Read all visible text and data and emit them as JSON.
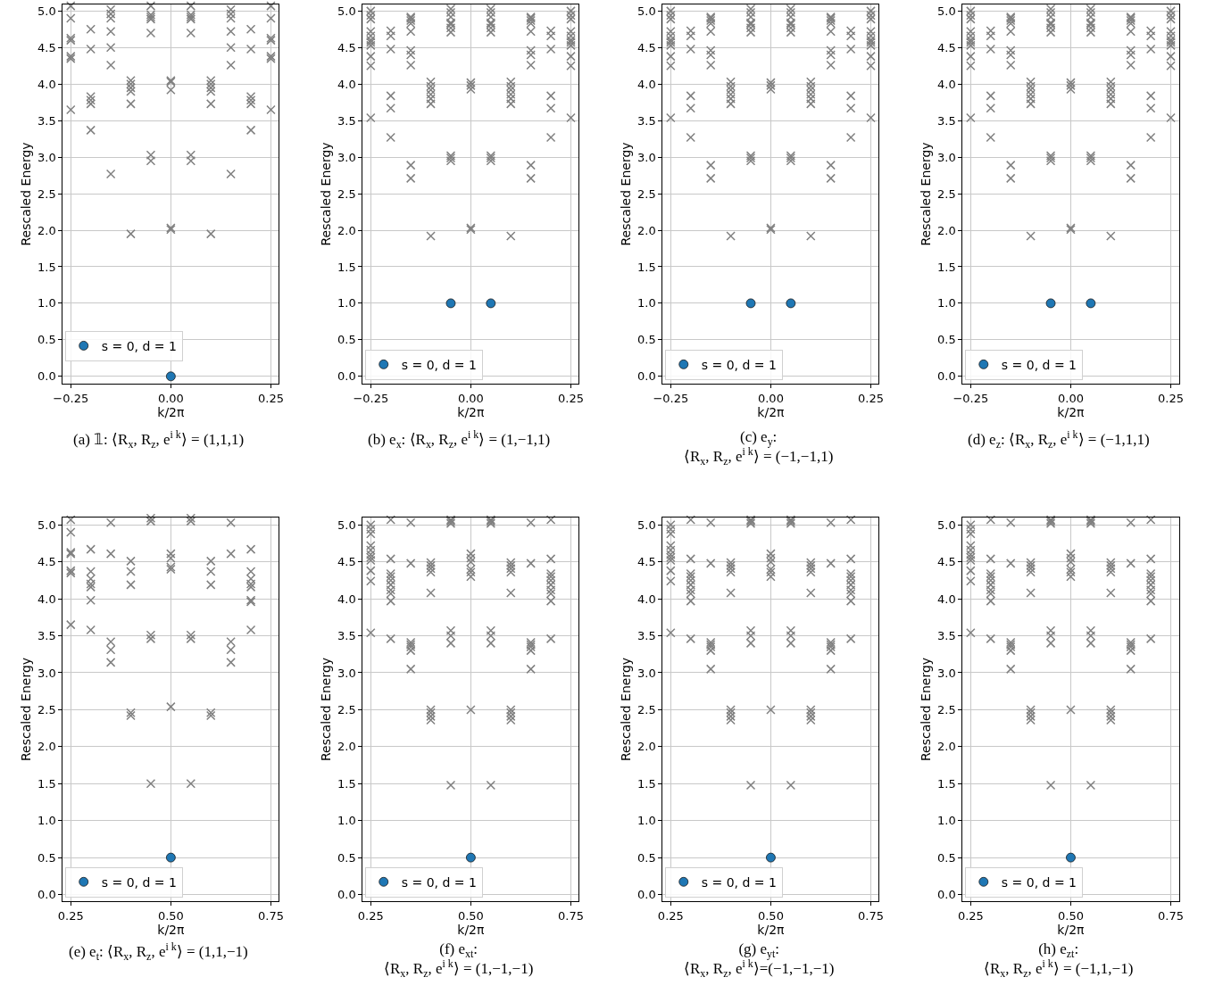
{
  "chart_data": [
    {
      "type": "scatter",
      "xlabel": "k/2π",
      "ylabel": "Rescaled Energy",
      "grid": true,
      "legend": "bottom left",
      "xlim": [
        -0.27,
        0.27
      ],
      "ylim": [
        -0.1,
        5.09
      ],
      "xticks": [
        {
          "value": -0.25,
          "label": "−0.25"
        },
        {
          "value": 0,
          "label": "0.00"
        },
        {
          "value": 0.25,
          "label": "0.25"
        }
      ],
      "yticks": [
        {
          "value": 0,
          "label": "0.0"
        },
        {
          "value": 0.5,
          "label": "0.5"
        },
        {
          "value": 1,
          "label": "1.0"
        },
        {
          "value": 1.5,
          "label": "1.5"
        },
        {
          "value": 2,
          "label": "2.0"
        },
        {
          "value": 2.5,
          "label": "2.5"
        },
        {
          "value": 3,
          "label": "3.0"
        },
        {
          "value": 3.5,
          "label": "3.5"
        },
        {
          "value": 4,
          "label": "4.0"
        },
        {
          "value": 4.5,
          "label": "4.5"
        },
        {
          "value": 5,
          "label": "5.0"
        }
      ],
      "annotations": [
        "(a) 𝟙: ⟨R$_{x}$, R$_{z}$, e$^{i k}$⟩ = (1,1,1)"
      ],
      "series": [
        {
          "color": "#808080",
          "marker": "cross",
          "x": [
            -0.25,
            -0.25,
            -0.25,
            -0.25,
            -0.25,
            -0.25,
            -0.25,
            -0.2,
            -0.2,
            -0.2,
            -0.2,
            -0.2,
            -0.2,
            -0.15,
            -0.15,
            -0.15,
            -0.15,
            -0.15,
            -0.15,
            -0.15,
            -0.1,
            -0.1,
            -0.1,
            -0.1,
            -0.1,
            -0.1,
            -0.05,
            -0.05,
            -0.05,
            -0.05,
            -0.05,
            -0.05,
            -0.05,
            0,
            0,
            0,
            0,
            0,
            0.05,
            0.05,
            0.05,
            0.05,
            0.05,
            0.05,
            0.05,
            0.1,
            0.1,
            0.1,
            0.1,
            0.1,
            0.1,
            0.15,
            0.15,
            0.15,
            0.15,
            0.15,
            0.15,
            0.15,
            0.2,
            0.2,
            0.2,
            0.2,
            0.2,
            0.2,
            0.25,
            0.25,
            0.25,
            0.25,
            0.25,
            0.25,
            0.25
          ],
          "values": [
            5.07,
            4.9,
            4.63,
            4.6,
            4.38,
            4.35,
            3.65,
            4.75,
            4.48,
            3.83,
            3.78,
            3.73,
            3.37,
            5.02,
            4.96,
            4.9,
            4.72,
            4.5,
            4.26,
            2.77,
            4.05,
            4.0,
            3.95,
            3.9,
            3.73,
            1.95,
            5.07,
            4.95,
            4.92,
            4.89,
            4.7,
            3.03,
            2.95,
            4.05,
            4.03,
            3.92,
            2.03,
            2.01,
            5.07,
            4.95,
            4.92,
            4.89,
            4.7,
            3.03,
            2.95,
            4.05,
            4.0,
            3.95,
            3.9,
            3.73,
            1.95,
            5.02,
            4.96,
            4.9,
            4.72,
            4.5,
            4.26,
            2.77,
            4.75,
            4.48,
            3.83,
            3.78,
            3.73,
            3.37,
            5.07,
            4.9,
            4.63,
            4.6,
            4.38,
            4.35,
            3.65
          ]
        },
        {
          "name": "s = 0, d = 1",
          "color": "#1f77b4",
          "marker": "circle",
          "x": [
            0
          ],
          "values": [
            0
          ]
        }
      ]
    },
    {
      "type": "scatter",
      "xlabel": "k/2π",
      "ylabel": "Rescaled Energy",
      "grid": true,
      "legend": "bottom left",
      "xlim": [
        -0.27,
        0.27
      ],
      "ylim": [
        -0.1,
        5.09
      ],
      "xticks": [
        {
          "value": -0.25,
          "label": "−0.25"
        },
        {
          "value": 0,
          "label": "0.00"
        },
        {
          "value": 0.25,
          "label": "0.25"
        }
      ],
      "yticks": [
        {
          "value": 0,
          "label": "0.0"
        },
        {
          "value": 0.5,
          "label": "0.5"
        },
        {
          "value": 1,
          "label": "1.0"
        },
        {
          "value": 1.5,
          "label": "1.5"
        },
        {
          "value": 2,
          "label": "2.0"
        },
        {
          "value": 2.5,
          "label": "2.5"
        },
        {
          "value": 3,
          "label": "3.0"
        },
        {
          "value": 3.5,
          "label": "3.5"
        },
        {
          "value": 4,
          "label": "4.0"
        },
        {
          "value": 4.5,
          "label": "4.5"
        },
        {
          "value": 5,
          "label": "5.0"
        }
      ],
      "annotations": [
        "(b) e$_{x}$: ⟨R$_{x}$, R$_{z}$, e$^{i k}$⟩ = (1,−1,1)"
      ],
      "series": [
        {
          "color": "#808080",
          "marker": "cross",
          "x": [
            -0.25,
            -0.25,
            -0.25,
            -0.25,
            -0.25,
            -0.25,
            -0.25,
            -0.25,
            -0.25,
            -0.25,
            -0.25,
            -0.2,
            -0.2,
            -0.2,
            -0.2,
            -0.2,
            -0.2,
            -0.15,
            -0.15,
            -0.15,
            -0.15,
            -0.15,
            -0.15,
            -0.15,
            -0.15,
            -0.15,
            -0.15,
            -0.1,
            -0.1,
            -0.1,
            -0.1,
            -0.1,
            -0.1,
            -0.1,
            -0.05,
            -0.05,
            -0.05,
            -0.05,
            -0.05,
            -0.05,
            -0.05,
            -0.05,
            -0.05,
            -0.05,
            0,
            0,
            0,
            0,
            0,
            0.05,
            0.05,
            0.05,
            0.05,
            0.05,
            0.05,
            0.05,
            0.05,
            0.05,
            0.05,
            0.1,
            0.1,
            0.1,
            0.1,
            0.1,
            0.1,
            0.1,
            0.15,
            0.15,
            0.15,
            0.15,
            0.15,
            0.15,
            0.15,
            0.15,
            0.15,
            0.15,
            0.2,
            0.2,
            0.2,
            0.2,
            0.2,
            0.2,
            0.25,
            0.25,
            0.25,
            0.25,
            0.25,
            0.25,
            0.25,
            0.25,
            0.25,
            0.25,
            0.25
          ],
          "values": [
            5.0,
            4.94,
            4.89,
            4.72,
            4.66,
            4.6,
            4.57,
            4.53,
            4.38,
            4.25,
            3.54,
            4.73,
            4.66,
            4.48,
            3.84,
            3.67,
            3.27,
            4.92,
            4.9,
            4.87,
            4.83,
            4.72,
            4.46,
            4.4,
            4.26,
            2.89,
            2.71,
            4.03,
            3.97,
            3.92,
            3.86,
            3.8,
            3.73,
            1.92,
            5.03,
            4.98,
            4.92,
            4.84,
            4.82,
            4.77,
            4.71,
            3.02,
            2.99,
            2.95,
            4.02,
            3.98,
            3.93,
            2.03,
            2.01,
            5.03,
            4.98,
            4.92,
            4.84,
            4.82,
            4.77,
            4.71,
            3.02,
            2.99,
            2.95,
            4.03,
            3.97,
            3.92,
            3.86,
            3.8,
            3.73,
            1.92,
            4.92,
            4.9,
            4.87,
            4.83,
            4.72,
            4.46,
            4.4,
            4.26,
            2.89,
            2.71,
            4.73,
            4.66,
            4.48,
            3.84,
            3.67,
            3.27,
            5.0,
            4.94,
            4.89,
            4.72,
            4.66,
            4.6,
            4.57,
            4.53,
            4.38,
            4.25,
            3.54
          ]
        },
        {
          "name": "s = 0, d = 1",
          "color": "#1f77b4",
          "marker": "circle",
          "x": [
            -0.05,
            0.05
          ],
          "values": [
            1,
            1
          ]
        }
      ]
    },
    {
      "type": "scatter",
      "xlabel": "k/2π",
      "ylabel": "Rescaled Energy",
      "grid": true,
      "legend": "bottom left",
      "xlim": [
        -0.27,
        0.27
      ],
      "ylim": [
        -0.1,
        5.09
      ],
      "xticks": [
        {
          "value": -0.25,
          "label": "−0.25"
        },
        {
          "value": 0,
          "label": "0.00"
        },
        {
          "value": 0.25,
          "label": "0.25"
        }
      ],
      "yticks": [
        {
          "value": 0,
          "label": "0.0"
        },
        {
          "value": 0.5,
          "label": "0.5"
        },
        {
          "value": 1,
          "label": "1.0"
        },
        {
          "value": 1.5,
          "label": "1.5"
        },
        {
          "value": 2,
          "label": "2.0"
        },
        {
          "value": 2.5,
          "label": "2.5"
        },
        {
          "value": 3,
          "label": "3.0"
        },
        {
          "value": 3.5,
          "label": "3.5"
        },
        {
          "value": 4,
          "label": "4.0"
        },
        {
          "value": 4.5,
          "label": "4.5"
        },
        {
          "value": 5,
          "label": "5.0"
        }
      ],
      "annotations": [
        "(c) e$_{y}$:\n⟨R$_{x}$, R$_{z}$, e$^{i k}$⟩ = (−1,−1,1)"
      ],
      "series": [
        {
          "color": "#808080",
          "marker": "cross",
          "x": [
            -0.25,
            -0.25,
            -0.25,
            -0.25,
            -0.25,
            -0.25,
            -0.25,
            -0.25,
            -0.25,
            -0.25,
            -0.25,
            -0.2,
            -0.2,
            -0.2,
            -0.2,
            -0.2,
            -0.2,
            -0.15,
            -0.15,
            -0.15,
            -0.15,
            -0.15,
            -0.15,
            -0.15,
            -0.15,
            -0.15,
            -0.15,
            -0.1,
            -0.1,
            -0.1,
            -0.1,
            -0.1,
            -0.1,
            -0.1,
            -0.05,
            -0.05,
            -0.05,
            -0.05,
            -0.05,
            -0.05,
            -0.05,
            -0.05,
            -0.05,
            -0.05,
            0,
            0,
            0,
            0,
            0,
            0.05,
            0.05,
            0.05,
            0.05,
            0.05,
            0.05,
            0.05,
            0.05,
            0.05,
            0.05,
            0.1,
            0.1,
            0.1,
            0.1,
            0.1,
            0.1,
            0.1,
            0.15,
            0.15,
            0.15,
            0.15,
            0.15,
            0.15,
            0.15,
            0.15,
            0.15,
            0.15,
            0.2,
            0.2,
            0.2,
            0.2,
            0.2,
            0.2,
            0.25,
            0.25,
            0.25,
            0.25,
            0.25,
            0.25,
            0.25,
            0.25,
            0.25,
            0.25,
            0.25
          ],
          "values": [
            5.0,
            4.94,
            4.89,
            4.72,
            4.66,
            4.6,
            4.57,
            4.53,
            4.38,
            4.25,
            3.54,
            4.73,
            4.66,
            4.48,
            3.84,
            3.67,
            3.27,
            4.92,
            4.9,
            4.87,
            4.83,
            4.72,
            4.46,
            4.4,
            4.26,
            2.89,
            2.71,
            4.03,
            3.97,
            3.92,
            3.86,
            3.8,
            3.73,
            1.92,
            5.03,
            4.98,
            4.92,
            4.84,
            4.82,
            4.77,
            4.71,
            3.02,
            2.99,
            2.95,
            4.02,
            3.98,
            3.93,
            2.03,
            2.01,
            5.03,
            4.98,
            4.92,
            4.84,
            4.82,
            4.77,
            4.71,
            3.02,
            2.99,
            2.95,
            4.03,
            3.97,
            3.92,
            3.86,
            3.8,
            3.73,
            1.92,
            4.92,
            4.9,
            4.87,
            4.83,
            4.72,
            4.46,
            4.4,
            4.26,
            2.89,
            2.71,
            4.73,
            4.66,
            4.48,
            3.84,
            3.67,
            3.27,
            5.0,
            4.94,
            4.89,
            4.72,
            4.66,
            4.6,
            4.57,
            4.53,
            4.38,
            4.25,
            3.54
          ]
        },
        {
          "name": "s = 0, d = 1",
          "color": "#1f77b4",
          "marker": "circle",
          "x": [
            -0.05,
            0.05
          ],
          "values": [
            1,
            1
          ]
        }
      ]
    },
    {
      "type": "scatter",
      "xlabel": "k/2π",
      "ylabel": "Rescaled Energy",
      "grid": true,
      "legend": "bottom left",
      "xlim": [
        -0.27,
        0.27
      ],
      "ylim": [
        -0.1,
        5.09
      ],
      "xticks": [
        {
          "value": -0.25,
          "label": "−0.25"
        },
        {
          "value": 0,
          "label": "0.00"
        },
        {
          "value": 0.25,
          "label": "0.25"
        }
      ],
      "yticks": [
        {
          "value": 0,
          "label": "0.0"
        },
        {
          "value": 0.5,
          "label": "0.5"
        },
        {
          "value": 1,
          "label": "1.0"
        },
        {
          "value": 1.5,
          "label": "1.5"
        },
        {
          "value": 2,
          "label": "2.0"
        },
        {
          "value": 2.5,
          "label": "2.5"
        },
        {
          "value": 3,
          "label": "3.0"
        },
        {
          "value": 3.5,
          "label": "3.5"
        },
        {
          "value": 4,
          "label": "4.0"
        },
        {
          "value": 4.5,
          "label": "4.5"
        },
        {
          "value": 5,
          "label": "5.0"
        }
      ],
      "annotations": [
        "(d) e$_{z}$: ⟨R$_{x}$, R$_{z}$, e$^{i k}$⟩ = (−1,1,1)"
      ],
      "series": [
        {
          "color": "#808080",
          "marker": "cross",
          "x": [
            -0.25,
            -0.25,
            -0.25,
            -0.25,
            -0.25,
            -0.25,
            -0.25,
            -0.25,
            -0.25,
            -0.25,
            -0.25,
            -0.2,
            -0.2,
            -0.2,
            -0.2,
            -0.2,
            -0.2,
            -0.15,
            -0.15,
            -0.15,
            -0.15,
            -0.15,
            -0.15,
            -0.15,
            -0.15,
            -0.15,
            -0.15,
            -0.1,
            -0.1,
            -0.1,
            -0.1,
            -0.1,
            -0.1,
            -0.1,
            -0.05,
            -0.05,
            -0.05,
            -0.05,
            -0.05,
            -0.05,
            -0.05,
            -0.05,
            -0.05,
            -0.05,
            0,
            0,
            0,
            0,
            0,
            0.05,
            0.05,
            0.05,
            0.05,
            0.05,
            0.05,
            0.05,
            0.05,
            0.05,
            0.05,
            0.1,
            0.1,
            0.1,
            0.1,
            0.1,
            0.1,
            0.1,
            0.15,
            0.15,
            0.15,
            0.15,
            0.15,
            0.15,
            0.15,
            0.15,
            0.15,
            0.15,
            0.2,
            0.2,
            0.2,
            0.2,
            0.2,
            0.2,
            0.25,
            0.25,
            0.25,
            0.25,
            0.25,
            0.25,
            0.25,
            0.25,
            0.25,
            0.25,
            0.25
          ],
          "values": [
            5.0,
            4.94,
            4.89,
            4.72,
            4.66,
            4.6,
            4.57,
            4.53,
            4.38,
            4.25,
            3.54,
            4.73,
            4.66,
            4.48,
            3.84,
            3.67,
            3.27,
            4.92,
            4.9,
            4.87,
            4.83,
            4.72,
            4.46,
            4.4,
            4.26,
            2.89,
            2.71,
            4.03,
            3.97,
            3.92,
            3.86,
            3.8,
            3.73,
            1.92,
            5.03,
            4.98,
            4.92,
            4.84,
            4.82,
            4.77,
            4.71,
            3.02,
            2.99,
            2.95,
            4.02,
            3.98,
            3.93,
            2.03,
            2.01,
            5.03,
            4.98,
            4.92,
            4.84,
            4.82,
            4.77,
            4.71,
            3.02,
            2.99,
            2.95,
            4.03,
            3.97,
            3.92,
            3.86,
            3.8,
            3.73,
            1.92,
            4.92,
            4.9,
            4.87,
            4.83,
            4.72,
            4.46,
            4.4,
            4.26,
            2.89,
            2.71,
            4.73,
            4.66,
            4.48,
            3.84,
            3.67,
            3.27,
            5.0,
            4.94,
            4.89,
            4.72,
            4.66,
            4.6,
            4.57,
            4.53,
            4.38,
            4.25,
            3.54
          ]
        },
        {
          "name": "s = 0, d = 1",
          "color": "#1f77b4",
          "marker": "circle",
          "x": [
            -0.05,
            0.05
          ],
          "values": [
            1,
            1
          ]
        }
      ]
    },
    {
      "type": "scatter",
      "xlabel": "k/2π",
      "ylabel": "Rescaled Energy",
      "grid": true,
      "legend": "bottom left",
      "xlim": [
        0.23,
        0.77
      ],
      "ylim": [
        -0.09,
        5.1
      ],
      "xticks": [
        {
          "value": 0.25,
          "label": "0.25"
        },
        {
          "value": 0.5,
          "label": "0.50"
        },
        {
          "value": 0.75,
          "label": "0.75"
        }
      ],
      "yticks": [
        {
          "value": 0,
          "label": "0.0"
        },
        {
          "value": 0.5,
          "label": "0.5"
        },
        {
          "value": 1,
          "label": "1.0"
        },
        {
          "value": 1.5,
          "label": "1.5"
        },
        {
          "value": 2,
          "label": "2.0"
        },
        {
          "value": 2.5,
          "label": "2.5"
        },
        {
          "value": 3,
          "label": "3.0"
        },
        {
          "value": 3.5,
          "label": "3.5"
        },
        {
          "value": 4,
          "label": "4.0"
        },
        {
          "value": 4.5,
          "label": "4.5"
        },
        {
          "value": 5,
          "label": "5.0"
        }
      ],
      "annotations": [
        "(e) e$_{t}$: ⟨R$_{x}$, R$_{z}$, e$^{i k}$⟩ = (1,1,−1)"
      ],
      "series": [
        {
          "color": "#808080",
          "marker": "cross",
          "x": [
            0.25,
            0.25,
            0.25,
            0.25,
            0.25,
            0.25,
            0.25,
            0.3,
            0.3,
            0.3,
            0.3,
            0.3,
            0.3,
            0.3,
            0.35,
            0.35,
            0.35,
            0.35,
            0.35,
            0.4,
            0.4,
            0.4,
            0.4,
            0.4,
            0.45,
            0.45,
            0.45,
            0.45,
            0.45,
            0.5,
            0.5,
            0.5,
            0.5,
            0.5,
            0.55,
            0.55,
            0.55,
            0.55,
            0.55,
            0.6,
            0.6,
            0.6,
            0.6,
            0.6,
            0.65,
            0.65,
            0.65,
            0.65,
            0.65,
            0.7,
            0.7,
            0.7,
            0.7,
            0.7,
            0.7,
            0.7,
            0.7
          ],
          "values": [
            5.07,
            4.9,
            4.63,
            4.61,
            4.38,
            4.35,
            3.65,
            4.67,
            4.37,
            4.27,
            4.2,
            4.16,
            3.98,
            3.58,
            5.03,
            4.61,
            3.42,
            3.31,
            3.14,
            4.51,
            4.37,
            4.19,
            2.46,
            2.42,
            5.09,
            5.05,
            3.51,
            3.46,
            1.5,
            4.61,
            4.55,
            4.43,
            4.4,
            2.54,
            5.09,
            5.05,
            3.51,
            3.46,
            1.5,
            4.51,
            4.37,
            4.19,
            2.46,
            2.42,
            5.03,
            4.61,
            3.42,
            3.31,
            3.14,
            4.67,
            4.37,
            4.27,
            4.2,
            4.16,
            3.98,
            3.96,
            3.58
          ]
        },
        {
          "name": "s = 0, d = 1",
          "color": "#1f77b4",
          "marker": "circle",
          "x": [
            0.5
          ],
          "values": [
            0.5
          ]
        }
      ]
    },
    {
      "type": "scatter",
      "xlabel": "k/2π",
      "ylabel": "Rescaled Energy",
      "grid": true,
      "legend": "bottom left",
      "xlim": [
        0.23,
        0.77
      ],
      "ylim": [
        -0.09,
        5.1
      ],
      "xticks": [
        {
          "value": 0.25,
          "label": "0.25"
        },
        {
          "value": 0.5,
          "label": "0.50"
        },
        {
          "value": 0.75,
          "label": "0.75"
        }
      ],
      "yticks": [
        {
          "value": 0,
          "label": "0.0"
        },
        {
          "value": 0.5,
          "label": "0.5"
        },
        {
          "value": 1,
          "label": "1.0"
        },
        {
          "value": 1.5,
          "label": "1.5"
        },
        {
          "value": 2,
          "label": "2.0"
        },
        {
          "value": 2.5,
          "label": "2.5"
        },
        {
          "value": 3,
          "label": "3.0"
        },
        {
          "value": 3.5,
          "label": "3.5"
        },
        {
          "value": 4,
          "label": "4.0"
        },
        {
          "value": 4.5,
          "label": "4.5"
        },
        {
          "value": 5,
          "label": "5.0"
        }
      ],
      "annotations": [
        "(f) e$_{xt}$:\n⟨R$_{x}$, R$_{z}$, e$^{i k}$⟩ = (1,−1,−1)"
      ],
      "series": [
        {
          "color": "#808080",
          "marker": "cross",
          "x": [
            0.25,
            0.25,
            0.25,
            0.25,
            0.25,
            0.25,
            0.25,
            0.25,
            0.25,
            0.25,
            0.25,
            0.3,
            0.3,
            0.3,
            0.3,
            0.3,
            0.3,
            0.3,
            0.3,
            0.3,
            0.3,
            0.35,
            0.35,
            0.35,
            0.35,
            0.35,
            0.35,
            0.35,
            0.4,
            0.4,
            0.4,
            0.4,
            0.4,
            0.4,
            0.4,
            0.4,
            0.4,
            0.45,
            0.45,
            0.45,
            0.45,
            0.45,
            0.45,
            0.45,
            0.5,
            0.5,
            0.5,
            0.5,
            0.5,
            0.5,
            0.5,
            0.55,
            0.55,
            0.55,
            0.55,
            0.55,
            0.55,
            0.55,
            0.6,
            0.6,
            0.6,
            0.6,
            0.6,
            0.6,
            0.6,
            0.6,
            0.6,
            0.65,
            0.65,
            0.65,
            0.65,
            0.65,
            0.65,
            0.65,
            0.7,
            0.7,
            0.7,
            0.7,
            0.7,
            0.7,
            0.7,
            0.7,
            0.7,
            0.7
          ],
          "values": [
            5.0,
            4.94,
            4.88,
            4.72,
            4.66,
            4.6,
            4.56,
            4.52,
            4.38,
            4.24,
            3.54,
            5.07,
            4.54,
            4.34,
            4.3,
            4.25,
            4.19,
            4.12,
            4.07,
            3.97,
            3.46,
            5.03,
            4.48,
            3.41,
            3.38,
            3.35,
            3.3,
            3.05,
            4.49,
            4.45,
            4.41,
            4.36,
            4.08,
            2.5,
            2.46,
            2.41,
            2.36,
            5.07,
            5.05,
            5.02,
            3.57,
            3.5,
            3.4,
            1.48,
            4.61,
            4.55,
            4.5,
            4.4,
            4.36,
            4.3,
            2.5,
            5.07,
            5.05,
            5.02,
            3.57,
            3.5,
            3.4,
            1.48,
            4.49,
            4.45,
            4.41,
            4.36,
            4.08,
            2.5,
            2.46,
            2.41,
            2.36,
            5.03,
            4.48,
            3.41,
            3.38,
            3.35,
            3.3,
            3.05,
            5.07,
            4.54,
            4.34,
            4.3,
            4.25,
            4.19,
            4.12,
            4.07,
            3.97,
            3.46
          ]
        },
        {
          "name": "s = 0, d = 1",
          "color": "#1f77b4",
          "marker": "circle",
          "x": [
            0.5
          ],
          "values": [
            0.5
          ]
        }
      ]
    },
    {
      "type": "scatter",
      "xlabel": "k/2π",
      "ylabel": "Rescaled Energy",
      "grid": true,
      "legend": "bottom left",
      "xlim": [
        0.23,
        0.77
      ],
      "ylim": [
        -0.09,
        5.1
      ],
      "xticks": [
        {
          "value": 0.25,
          "label": "0.25"
        },
        {
          "value": 0.5,
          "label": "0.50"
        },
        {
          "value": 0.75,
          "label": "0.75"
        }
      ],
      "yticks": [
        {
          "value": 0,
          "label": "0.0"
        },
        {
          "value": 0.5,
          "label": "0.5"
        },
        {
          "value": 1,
          "label": "1.0"
        },
        {
          "value": 1.5,
          "label": "1.5"
        },
        {
          "value": 2,
          "label": "2.0"
        },
        {
          "value": 2.5,
          "label": "2.5"
        },
        {
          "value": 3,
          "label": "3.0"
        },
        {
          "value": 3.5,
          "label": "3.5"
        },
        {
          "value": 4,
          "label": "4.0"
        },
        {
          "value": 4.5,
          "label": "4.5"
        },
        {
          "value": 5,
          "label": "5.0"
        }
      ],
      "annotations": [
        "(g) e$_{yt}$:\n⟨R$_{x}$, R$_{z}$, e$^{i k}$⟩=(−1,−1,−1)"
      ],
      "series": [
        {
          "color": "#808080",
          "marker": "cross",
          "x": [
            0.25,
            0.25,
            0.25,
            0.25,
            0.25,
            0.25,
            0.25,
            0.25,
            0.25,
            0.25,
            0.25,
            0.3,
            0.3,
            0.3,
            0.3,
            0.3,
            0.3,
            0.3,
            0.3,
            0.3,
            0.3,
            0.35,
            0.35,
            0.35,
            0.35,
            0.35,
            0.35,
            0.35,
            0.4,
            0.4,
            0.4,
            0.4,
            0.4,
            0.4,
            0.4,
            0.4,
            0.4,
            0.45,
            0.45,
            0.45,
            0.45,
            0.45,
            0.45,
            0.45,
            0.5,
            0.5,
            0.5,
            0.5,
            0.5,
            0.5,
            0.5,
            0.55,
            0.55,
            0.55,
            0.55,
            0.55,
            0.55,
            0.55,
            0.6,
            0.6,
            0.6,
            0.6,
            0.6,
            0.6,
            0.6,
            0.6,
            0.6,
            0.65,
            0.65,
            0.65,
            0.65,
            0.65,
            0.65,
            0.65,
            0.7,
            0.7,
            0.7,
            0.7,
            0.7,
            0.7,
            0.7,
            0.7,
            0.7,
            0.7
          ],
          "values": [
            5.0,
            4.94,
            4.88,
            4.72,
            4.66,
            4.6,
            4.56,
            4.52,
            4.38,
            4.24,
            3.54,
            5.07,
            4.54,
            4.34,
            4.3,
            4.25,
            4.19,
            4.12,
            4.07,
            3.97,
            3.46,
            5.03,
            4.48,
            3.41,
            3.38,
            3.35,
            3.3,
            3.05,
            4.49,
            4.45,
            4.41,
            4.36,
            4.08,
            2.5,
            2.46,
            2.41,
            2.36,
            5.07,
            5.05,
            5.02,
            3.57,
            3.5,
            3.4,
            1.48,
            4.61,
            4.55,
            4.5,
            4.4,
            4.36,
            4.3,
            2.5,
            5.07,
            5.05,
            5.02,
            3.57,
            3.5,
            3.4,
            1.48,
            4.49,
            4.45,
            4.41,
            4.36,
            4.08,
            2.5,
            2.46,
            2.41,
            2.36,
            5.03,
            4.48,
            3.41,
            3.38,
            3.35,
            3.3,
            3.05,
            5.07,
            4.54,
            4.34,
            4.3,
            4.25,
            4.19,
            4.12,
            4.07,
            3.97,
            3.46
          ]
        },
        {
          "name": "s = 0, d = 1",
          "color": "#1f77b4",
          "marker": "circle",
          "x": [
            0.5
          ],
          "values": [
            0.5
          ]
        }
      ]
    },
    {
      "type": "scatter",
      "xlabel": "k/2π",
      "ylabel": "Rescaled Energy",
      "grid": true,
      "legend": "bottom left",
      "xlim": [
        0.23,
        0.77
      ],
      "ylim": [
        -0.09,
        5.1
      ],
      "xticks": [
        {
          "value": 0.25,
          "label": "0.25"
        },
        {
          "value": 0.5,
          "label": "0.50"
        },
        {
          "value": 0.75,
          "label": "0.75"
        }
      ],
      "yticks": [
        {
          "value": 0,
          "label": "0.0"
        },
        {
          "value": 0.5,
          "label": "0.5"
        },
        {
          "value": 1,
          "label": "1.0"
        },
        {
          "value": 1.5,
          "label": "1.5"
        },
        {
          "value": 2,
          "label": "2.0"
        },
        {
          "value": 2.5,
          "label": "2.5"
        },
        {
          "value": 3,
          "label": "3.0"
        },
        {
          "value": 3.5,
          "label": "3.5"
        },
        {
          "value": 4,
          "label": "4.0"
        },
        {
          "value": 4.5,
          "label": "4.5"
        },
        {
          "value": 5,
          "label": "5.0"
        }
      ],
      "annotations": [
        "(h) e$_{zt}$:\n⟨R$_{x}$, R$_{z}$, e$^{i k}$⟩ = (−1,1,−1)"
      ],
      "series": [
        {
          "color": "#808080",
          "marker": "cross",
          "x": [
            0.25,
            0.25,
            0.25,
            0.25,
            0.25,
            0.25,
            0.25,
            0.25,
            0.25,
            0.25,
            0.25,
            0.3,
            0.3,
            0.3,
            0.3,
            0.3,
            0.3,
            0.3,
            0.3,
            0.3,
            0.3,
            0.35,
            0.35,
            0.35,
            0.35,
            0.35,
            0.35,
            0.35,
            0.4,
            0.4,
            0.4,
            0.4,
            0.4,
            0.4,
            0.4,
            0.4,
            0.4,
            0.45,
            0.45,
            0.45,
            0.45,
            0.45,
            0.45,
            0.45,
            0.5,
            0.5,
            0.5,
            0.5,
            0.5,
            0.5,
            0.5,
            0.55,
            0.55,
            0.55,
            0.55,
            0.55,
            0.55,
            0.55,
            0.6,
            0.6,
            0.6,
            0.6,
            0.6,
            0.6,
            0.6,
            0.6,
            0.6,
            0.65,
            0.65,
            0.65,
            0.65,
            0.65,
            0.65,
            0.65,
            0.7,
            0.7,
            0.7,
            0.7,
            0.7,
            0.7,
            0.7,
            0.7,
            0.7,
            0.7
          ],
          "values": [
            5.0,
            4.94,
            4.88,
            4.72,
            4.66,
            4.6,
            4.56,
            4.52,
            4.38,
            4.24,
            3.54,
            5.07,
            4.54,
            4.34,
            4.3,
            4.25,
            4.19,
            4.12,
            4.07,
            3.97,
            3.46,
            5.03,
            4.48,
            3.41,
            3.38,
            3.35,
            3.3,
            3.05,
            4.49,
            4.45,
            4.41,
            4.36,
            4.08,
            2.5,
            2.46,
            2.41,
            2.36,
            5.07,
            5.05,
            5.02,
            3.57,
            3.5,
            3.4,
            1.48,
            4.61,
            4.55,
            4.5,
            4.4,
            4.36,
            4.3,
            2.5,
            5.07,
            5.05,
            5.02,
            3.57,
            3.5,
            3.4,
            1.48,
            4.49,
            4.45,
            4.41,
            4.36,
            4.08,
            2.5,
            2.46,
            2.41,
            2.36,
            5.03,
            4.48,
            3.41,
            3.38,
            3.35,
            3.3,
            3.05,
            5.07,
            4.54,
            4.34,
            4.3,
            4.25,
            4.19,
            4.12,
            4.07,
            3.97,
            3.46
          ]
        },
        {
          "name": "s = 0, d = 1",
          "color": "#1f77b4",
          "marker": "circle",
          "x": [
            0.5
          ],
          "values": [
            0.5
          ]
        }
      ]
    }
  ]
}
